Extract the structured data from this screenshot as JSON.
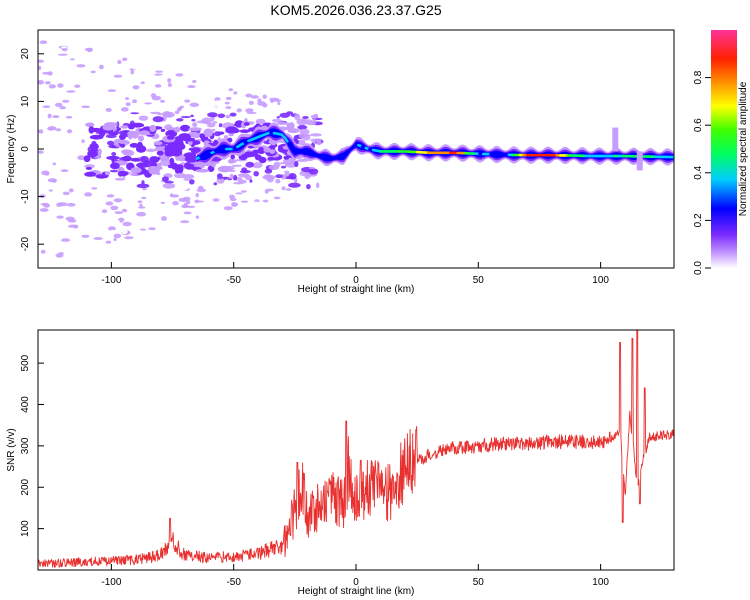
{
  "title": "KOM5.2026.036.23.37.G25",
  "chart_data": [
    {
      "type": "heatmap",
      "name": "spectrogram",
      "xlabel": "Height of straight line (km)",
      "ylabel": "Frequency (Hz)",
      "xlim": [
        -130,
        130
      ],
      "ylim": [
        -25,
        25
      ],
      "xticks": [
        -100,
        -50,
        0,
        50,
        100
      ],
      "yticks": [
        -20,
        -10,
        0,
        10,
        20
      ],
      "colorbar": {
        "label": "Normalized spectral amplitude",
        "range": [
          0,
          1
        ],
        "ticks": [
          "0.0",
          "0.2",
          "0.4",
          "0.6",
          "0.8"
        ],
        "tick_values": [
          0,
          0.2,
          0.4,
          0.6,
          0.8
        ],
        "colors": [
          "#ffffff",
          "#9a3cff",
          "#0000ff",
          "#00ffff",
          "#00ff00",
          "#ffff00",
          "#ff8000",
          "#ff0040",
          "#ff3090"
        ]
      },
      "ridge": {
        "description": "main carrier line frequency vs height",
        "x": [
          -65,
          -60,
          -55,
          -50,
          -45,
          -40,
          -35,
          -30,
          -25,
          -20,
          -15,
          -10,
          -5,
          0,
          5,
          10,
          20,
          30,
          40,
          50,
          60,
          70,
          80,
          90,
          100,
          110,
          120,
          130
        ],
        "freq": [
          -2,
          -1,
          0,
          0,
          1.5,
          2.5,
          3.5,
          3,
          -0.5,
          -0.5,
          -1.5,
          -2,
          -1.5,
          1,
          0,
          -0.5,
          -0.5,
          -0.8,
          -0.8,
          -1,
          -1.2,
          -1.3,
          -1.3,
          -1.4,
          -1.5,
          -1.5,
          -1.6,
          -1.7
        ],
        "amplitude": [
          0.35,
          0.35,
          0.35,
          0.4,
          0.4,
          0.4,
          0.4,
          0.4,
          0.3,
          0.3,
          0.3,
          0.3,
          0.3,
          0.35,
          0.35,
          0.5,
          0.6,
          0.8,
          0.9,
          0.4,
          0.3,
          0.9,
          0.9,
          0.5,
          0.4,
          0.5,
          0.5,
          0.4
        ]
      }
    },
    {
      "type": "line",
      "name": "snr",
      "xlabel": "Height of straight line (km)",
      "ylabel": "SNR (v/v)",
      "xlim": [
        -130,
        130
      ],
      "ylim": [
        0,
        580
      ],
      "xticks": [
        -100,
        -50,
        0,
        50,
        100
      ],
      "yticks": [
        100,
        200,
        300,
        400,
        500
      ],
      "color": "#e8302f",
      "series": [
        {
          "name": "SNR",
          "x": [
            -130,
            -120,
            -110,
            -100,
            -90,
            -80,
            -75,
            -70,
            -60,
            -50,
            -40,
            -30,
            -25,
            -22,
            -20,
            -15,
            -10,
            -5,
            -3,
            0,
            5,
            10,
            15,
            20,
            25,
            30,
            40,
            50,
            60,
            70,
            80,
            90,
            100,
            105,
            108,
            110,
            112,
            115,
            117,
            120,
            125,
            130
          ],
          "values": [
            15,
            17,
            20,
            22,
            25,
            35,
            70,
            35,
            30,
            32,
            40,
            60,
            140,
            210,
            130,
            150,
            180,
            150,
            250,
            160,
            210,
            200,
            180,
            250,
            260,
            280,
            295,
            300,
            305,
            305,
            310,
            310,
            310,
            320,
            330,
            180,
            380,
            200,
            260,
            320,
            325,
            330
          ]
        }
      ],
      "spikes": [
        {
          "x": -76,
          "value": 125
        },
        {
          "x": -24,
          "value": 260
        },
        {
          "x": -4,
          "value": 360
        },
        {
          "x": 2,
          "value": 265
        },
        {
          "x": 108,
          "value": 550
        },
        {
          "x": 109,
          "value": 115
        },
        {
          "x": 113,
          "value": 560
        },
        {
          "x": 115,
          "value": 580
        },
        {
          "x": 116,
          "value": 160
        },
        {
          "x": 118,
          "value": 440
        }
      ]
    }
  ]
}
